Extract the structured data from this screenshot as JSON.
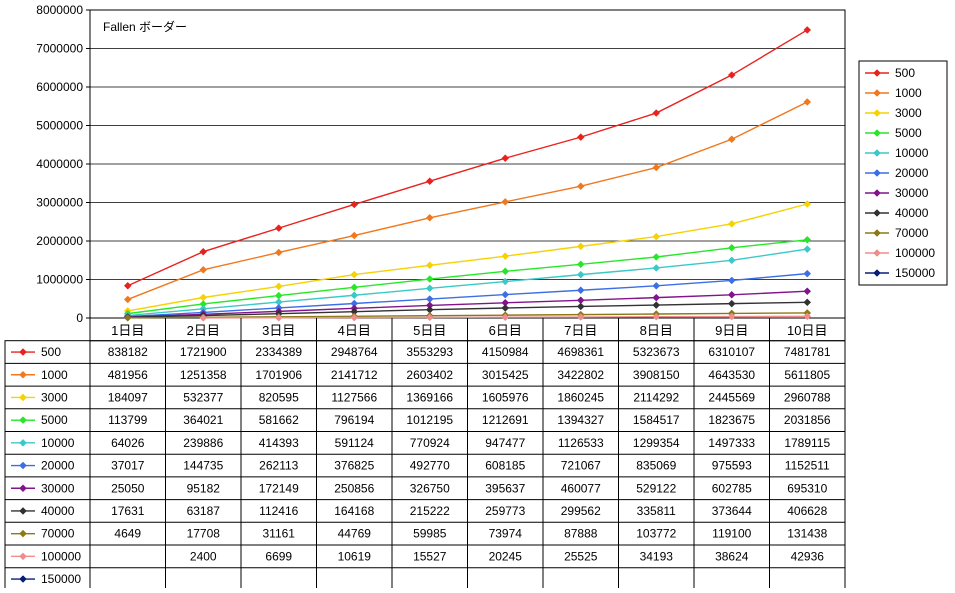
{
  "chart_data": {
    "type": "line",
    "title": "Fallen ボーダー",
    "xlabel": "",
    "ylabel": "",
    "ylim": [
      0,
      8000000
    ],
    "yticks": [
      "0",
      "1000000",
      "2000000",
      "3000000",
      "4000000",
      "5000000",
      "6000000",
      "7000000",
      "8000000"
    ],
    "grid": "horizontal",
    "legend_position": "right",
    "categories": [
      "1日目",
      "2日目",
      "3日目",
      "4日目",
      "5日目",
      "6日目",
      "7日目",
      "8日目",
      "9日目",
      "10日目"
    ],
    "series": [
      {
        "name": "500",
        "color": "#e8231e",
        "values": [
          838182,
          1721900,
          2334389,
          2948764,
          3553293,
          4150984,
          4698361,
          5323673,
          6310107,
          7481781
        ]
      },
      {
        "name": "1000",
        "color": "#f0781e",
        "values": [
          481956,
          1251358,
          1701906,
          2141712,
          2603402,
          3015425,
          3422802,
          3908150,
          4643530,
          5611805
        ]
      },
      {
        "name": "3000",
        "color": "#f5d200",
        "values": [
          184097,
          532377,
          820595,
          1127566,
          1369166,
          1605976,
          1860245,
          2114292,
          2445569,
          2960788
        ]
      },
      {
        "name": "5000",
        "color": "#28e628",
        "values": [
          113799,
          364021,
          581662,
          796194,
          1012195,
          1212691,
          1394327,
          1584517,
          1823675,
          2031856
        ]
      },
      {
        "name": "10000",
        "color": "#3cc8c8",
        "values": [
          64026,
          239886,
          414393,
          591124,
          770924,
          947477,
          1126533,
          1299354,
          1497333,
          1789115
        ]
      },
      {
        "name": "20000",
        "color": "#3c6ee6",
        "values": [
          37017,
          144735,
          262113,
          376825,
          492770,
          608185,
          721067,
          835069,
          975593,
          1152511
        ]
      },
      {
        "name": "30000",
        "color": "#82148c",
        "values": [
          25050,
          95182,
          172149,
          250856,
          326750,
          395637,
          460077,
          529122,
          602785,
          695310
        ]
      },
      {
        "name": "40000",
        "color": "#323232",
        "values": [
          17631,
          63187,
          112416,
          164168,
          215222,
          259773,
          299562,
          335811,
          373644,
          406628
        ]
      },
      {
        "name": "70000",
        "color": "#8c7814",
        "values": [
          4649,
          17708,
          31161,
          44769,
          59985,
          73974,
          87888,
          103772,
          119100,
          131438
        ]
      },
      {
        "name": "100000",
        "color": "#f08c8c",
        "values": [
          null,
          2400,
          6699,
          10619,
          15527,
          20245,
          25525,
          34193,
          38624,
          42936
        ]
      },
      {
        "name": "150000",
        "color": "#0a1e78",
        "values": [
          null,
          null,
          null,
          null,
          null,
          null,
          null,
          null,
          null,
          null
        ]
      }
    ],
    "table": {
      "rows": [
        {
          "label": "500",
          "cells": [
            "838182",
            "1721900",
            "2334389",
            "2948764",
            "3553293",
            "4150984",
            "4698361",
            "5323673",
            "6310107",
            "7481781"
          ]
        },
        {
          "label": "1000",
          "cells": [
            "481956",
            "1251358",
            "1701906",
            "2141712",
            "2603402",
            "3015425",
            "3422802",
            "3908150",
            "4643530",
            "5611805"
          ]
        },
        {
          "label": "3000",
          "cells": [
            "184097",
            "532377",
            "820595",
            "1127566",
            "1369166",
            "1605976",
            "1860245",
            "2114292",
            "2445569",
            "2960788"
          ]
        },
        {
          "label": "5000",
          "cells": [
            "113799",
            "364021",
            "581662",
            "796194",
            "1012195",
            "1212691",
            "1394327",
            "1584517",
            "1823675",
            "2031856"
          ]
        },
        {
          "label": "10000",
          "cells": [
            "64026",
            "239886",
            "414393",
            "591124",
            "770924",
            "947477",
            "1126533",
            "1299354",
            "1497333",
            "1789115"
          ]
        },
        {
          "label": "20000",
          "cells": [
            "37017",
            "144735",
            "262113",
            "376825",
            "492770",
            "608185",
            "721067",
            "835069",
            "975593",
            "1152511"
          ]
        },
        {
          "label": "30000",
          "cells": [
            "25050",
            "95182",
            "172149",
            "250856",
            "326750",
            "395637",
            "460077",
            "529122",
            "602785",
            "695310"
          ]
        },
        {
          "label": "40000",
          "cells": [
            "17631",
            "63187",
            "112416",
            "164168",
            "215222",
            "259773",
            "299562",
            "335811",
            "373644",
            "406628"
          ]
        },
        {
          "label": "70000",
          "cells": [
            "4649",
            "17708",
            "31161",
            "44769",
            "59985",
            "73974",
            "87888",
            "103772",
            "119100",
            "131438"
          ]
        },
        {
          "label": "100000",
          "cells": [
            "",
            "2400",
            "6699",
            "10619",
            "15527",
            "20245",
            "25525",
            "34193",
            "38624",
            "42936"
          ]
        },
        {
          "label": "150000",
          "cells": [
            "",
            "",
            "",
            "",
            "",
            "",
            "",
            "",
            "",
            ""
          ]
        }
      ]
    }
  }
}
